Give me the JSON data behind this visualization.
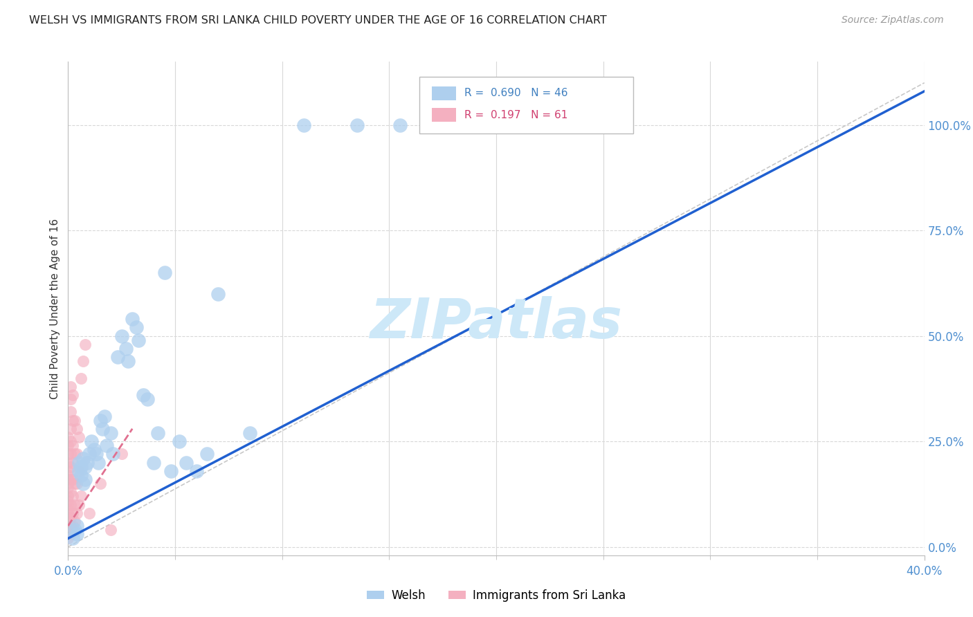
{
  "title": "WELSH VS IMMIGRANTS FROM SRI LANKA CHILD POVERTY UNDER THE AGE OF 16 CORRELATION CHART",
  "source": "Source: ZipAtlas.com",
  "xlabel_blue": "Welsh",
  "xlabel_pink": "Immigrants from Sri Lanka",
  "ylabel": "Child Poverty Under the Age of 16",
  "xlim": [
    0.0,
    0.4
  ],
  "ylim": [
    -0.02,
    1.15
  ],
  "yticks_right": [
    0.0,
    0.25,
    0.5,
    0.75,
    1.0
  ],
  "ytick_labels_right": [
    "0.0%",
    "25.0%",
    "50.0%",
    "75.0%",
    "100.0%"
  ],
  "R_blue": 0.69,
  "N_blue": 46,
  "R_pink": 0.197,
  "N_pink": 61,
  "blue_color": "#aecfee",
  "pink_color": "#f4b0c0",
  "line_blue": "#2060d0",
  "line_pink": "#e07090",
  "line_diag_color": "#c8c8c8",
  "watermark": "ZIPatlas",
  "watermark_color": "#cde8f8",
  "background_color": "#ffffff",
  "grid_color": "#d8d8d8",
  "blue_scatter": [
    [
      0.002,
      0.02
    ],
    [
      0.003,
      0.04
    ],
    [
      0.004,
      0.05
    ],
    [
      0.004,
      0.03
    ],
    [
      0.005,
      0.18
    ],
    [
      0.005,
      0.2
    ],
    [
      0.006,
      0.19
    ],
    [
      0.006,
      0.17
    ],
    [
      0.007,
      0.21
    ],
    [
      0.007,
      0.15
    ],
    [
      0.008,
      0.19
    ],
    [
      0.008,
      0.16
    ],
    [
      0.009,
      0.2
    ],
    [
      0.01,
      0.22
    ],
    [
      0.011,
      0.25
    ],
    [
      0.012,
      0.23
    ],
    [
      0.013,
      0.22
    ],
    [
      0.014,
      0.2
    ],
    [
      0.015,
      0.3
    ],
    [
      0.016,
      0.28
    ],
    [
      0.017,
      0.31
    ],
    [
      0.018,
      0.24
    ],
    [
      0.02,
      0.27
    ],
    [
      0.021,
      0.22
    ],
    [
      0.023,
      0.45
    ],
    [
      0.025,
      0.5
    ],
    [
      0.027,
      0.47
    ],
    [
      0.028,
      0.44
    ],
    [
      0.03,
      0.54
    ],
    [
      0.032,
      0.52
    ],
    [
      0.033,
      0.49
    ],
    [
      0.035,
      0.36
    ],
    [
      0.037,
      0.35
    ],
    [
      0.04,
      0.2
    ],
    [
      0.042,
      0.27
    ],
    [
      0.045,
      0.65
    ],
    [
      0.048,
      0.18
    ],
    [
      0.052,
      0.25
    ],
    [
      0.055,
      0.2
    ],
    [
      0.06,
      0.18
    ],
    [
      0.065,
      0.22
    ],
    [
      0.07,
      0.6
    ],
    [
      0.085,
      0.27
    ],
    [
      0.11,
      1.0
    ],
    [
      0.135,
      1.0
    ],
    [
      0.155,
      1.0
    ]
  ],
  "pink_scatter": [
    [
      0.0,
      0.02
    ],
    [
      0.0,
      0.03
    ],
    [
      0.0,
      0.04
    ],
    [
      0.0,
      0.05
    ],
    [
      0.0,
      0.06
    ],
    [
      0.0,
      0.07
    ],
    [
      0.0,
      0.08
    ],
    [
      0.0,
      0.09
    ],
    [
      0.0,
      0.1
    ],
    [
      0.0,
      0.11
    ],
    [
      0.0,
      0.12
    ],
    [
      0.0,
      0.14
    ],
    [
      0.0,
      0.15
    ],
    [
      0.0,
      0.16
    ],
    [
      0.0,
      0.17
    ],
    [
      0.0,
      0.18
    ],
    [
      0.0,
      0.2
    ],
    [
      0.0,
      0.22
    ],
    [
      0.0,
      0.24
    ],
    [
      0.0,
      0.26
    ],
    [
      0.001,
      0.03
    ],
    [
      0.001,
      0.05
    ],
    [
      0.001,
      0.07
    ],
    [
      0.001,
      0.1
    ],
    [
      0.001,
      0.13
    ],
    [
      0.001,
      0.16
    ],
    [
      0.001,
      0.19
    ],
    [
      0.001,
      0.22
    ],
    [
      0.001,
      0.25
    ],
    [
      0.001,
      0.28
    ],
    [
      0.001,
      0.32
    ],
    [
      0.001,
      0.35
    ],
    [
      0.001,
      0.38
    ],
    [
      0.002,
      0.05
    ],
    [
      0.002,
      0.08
    ],
    [
      0.002,
      0.12
    ],
    [
      0.002,
      0.16
    ],
    [
      0.002,
      0.2
    ],
    [
      0.002,
      0.24
    ],
    [
      0.002,
      0.3
    ],
    [
      0.002,
      0.36
    ],
    [
      0.003,
      0.06
    ],
    [
      0.003,
      0.1
    ],
    [
      0.003,
      0.15
    ],
    [
      0.003,
      0.22
    ],
    [
      0.003,
      0.3
    ],
    [
      0.004,
      0.08
    ],
    [
      0.004,
      0.15
    ],
    [
      0.004,
      0.22
    ],
    [
      0.004,
      0.28
    ],
    [
      0.005,
      0.1
    ],
    [
      0.005,
      0.18
    ],
    [
      0.005,
      0.26
    ],
    [
      0.006,
      0.12
    ],
    [
      0.006,
      0.4
    ],
    [
      0.007,
      0.44
    ],
    [
      0.008,
      0.48
    ],
    [
      0.01,
      0.08
    ],
    [
      0.015,
      0.15
    ],
    [
      0.02,
      0.04
    ],
    [
      0.025,
      0.22
    ]
  ],
  "blue_line_x": [
    0.0,
    0.4
  ],
  "blue_line_y": [
    0.02,
    1.08
  ],
  "pink_line_x": [
    0.0,
    0.03
  ],
  "pink_line_y": [
    0.05,
    0.28
  ],
  "diag_line_x": [
    0.0,
    0.4
  ],
  "diag_line_y": [
    0.0,
    1.1
  ]
}
